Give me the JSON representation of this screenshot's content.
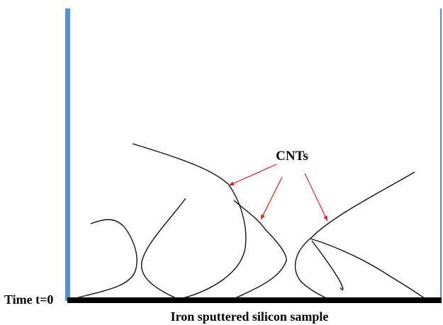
{
  "labels": {
    "cnts": "CNTs",
    "time": "Time t=0",
    "sample": "Iron sputtered silicon sample"
  }
}
